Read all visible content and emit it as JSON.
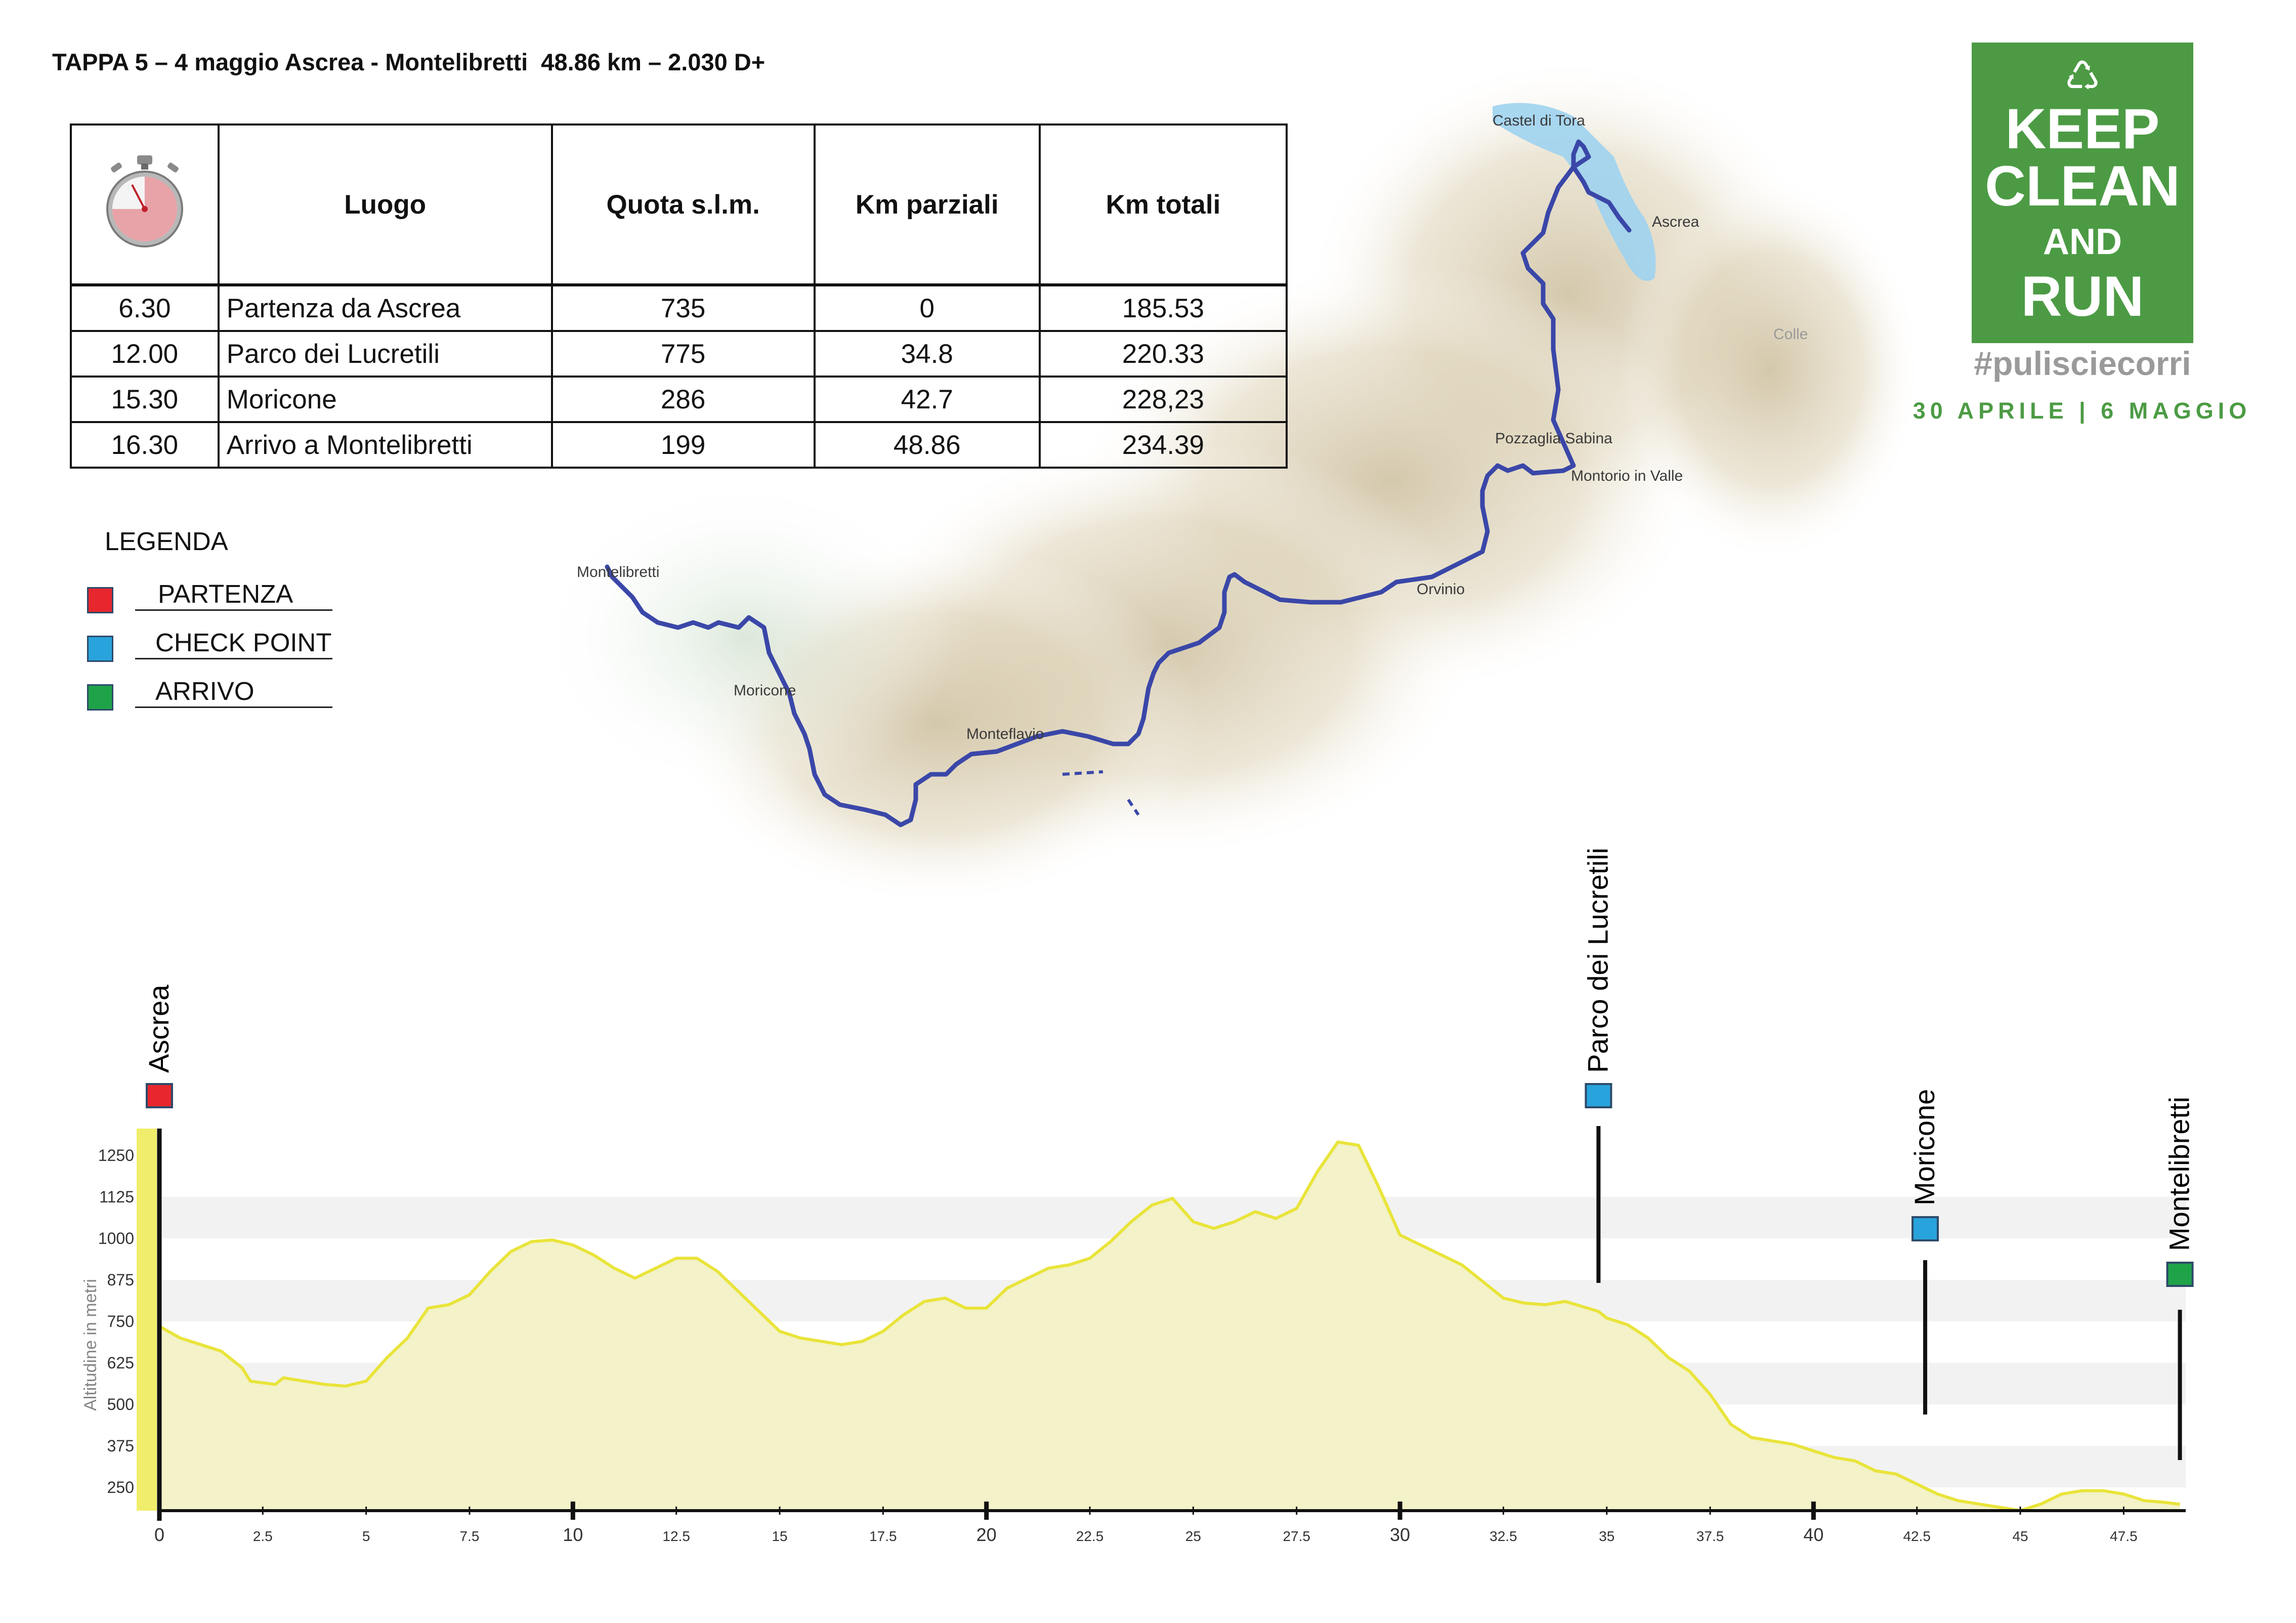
{
  "header": {
    "title": "TAPPA 5 – 4 maggio Ascrea - Montelibretti  48.86 km – 2.030 D+"
  },
  "table": {
    "headers": [
      "Luogo",
      "Quota s.l.m.",
      "Km parziali",
      "Km totali"
    ],
    "stopwatch_icon": "stopwatch-icon",
    "rows": [
      {
        "time": "6.30",
        "place": "Partenza da Ascrea",
        "altitude": "735",
        "partial_km": "0",
        "total_km": "185.53"
      },
      {
        "time": "12.00",
        "place": "Parco dei Lucretili",
        "altitude": "775",
        "partial_km": "34.8",
        "total_km": "220.33"
      },
      {
        "time": "15.30",
        "place": "Moricone",
        "altitude": "286",
        "partial_km": "42.7",
        "total_km": "228,23"
      },
      {
        "time": "16.30",
        "place": "Arrivo a Montelibretti",
        "altitude": "199",
        "partial_km": "48.86",
        "total_km": "234.39"
      }
    ]
  },
  "legend": {
    "title": "LEGENDA",
    "items": [
      {
        "label": "PARTENZA",
        "color": "#e8262d"
      },
      {
        "label": "CHECK POINT",
        "color": "#29a3dc"
      },
      {
        "label": "ARRIVO",
        "color": "#1fa349"
      }
    ]
  },
  "brand": {
    "recycle_icon": "recycle-icon",
    "line1": "KEEP",
    "line2": "CLEAN",
    "line3": "AND",
    "line4": "RUN",
    "hashtag": "#pulisciecorri",
    "dates": "30 APRILE | 6 MAGGIO",
    "color": "#4c9b44"
  },
  "map": {
    "labels": [
      "Castel di Tora",
      "Ascrea",
      "Pozzaglia Sabina",
      "Montorio in Valle",
      "Orvinio",
      "Montelibretti",
      "Moricone",
      "Monteflavio",
      "Colle"
    ],
    "route_color": "#3a47a8"
  },
  "profile_markers": [
    {
      "label": "Ascrea",
      "km": 0,
      "type": "start",
      "color": "#e8262d"
    },
    {
      "label": "Parco dei Lucretili",
      "km": 34.8,
      "type": "checkpoint",
      "color": "#29a3dc"
    },
    {
      "label": "Moricone",
      "km": 42.7,
      "type": "checkpoint",
      "color": "#29a3dc"
    },
    {
      "label": "Montelibretti",
      "km": 48.86,
      "type": "finish",
      "color": "#1fa349"
    }
  ],
  "chart_data": {
    "type": "area",
    "ylabel": "Altitudine in metri",
    "x_ticks": [
      "0",
      "2.5",
      "5",
      "7.5",
      "10",
      "12.5",
      "15",
      "17.5",
      "20",
      "22.5",
      "25",
      "27.5",
      "30",
      "32.5",
      "35",
      "37.5",
      "40",
      "42.5",
      "45",
      "47.5"
    ],
    "y_ticks": [
      "250",
      "375",
      "500",
      "625",
      "750",
      "875",
      "1000",
      "1125",
      "1250"
    ],
    "xlim": [
      0,
      49
    ],
    "ylim": [
      180,
      1300
    ],
    "series": [
      {
        "x": [
          0,
          0.5,
          1,
          1.5,
          2,
          2.2,
          2.8,
          3,
          3.5,
          4,
          4.5,
          5,
          5.5,
          6,
          6.5,
          7,
          7.5,
          8,
          8.5,
          9,
          9.5,
          10,
          10.5,
          11,
          11.5,
          12,
          12.5,
          13,
          13.5,
          14,
          14.5,
          15,
          15.5,
          16,
          16.5,
          17,
          17.5,
          18,
          18.5,
          19,
          19.5,
          20,
          20.5,
          21,
          21.5,
          22,
          22.5,
          23,
          23.5,
          24,
          24.5,
          25,
          25.5,
          26,
          26.5,
          27,
          27.5,
          28,
          28.5,
          29,
          29.5,
          30,
          30.5,
          31,
          31.5,
          32,
          32.5,
          33,
          33.5,
          34,
          34.8,
          35,
          35.5,
          36,
          36.5,
          37,
          37.5,
          38,
          38.5,
          39,
          39.5,
          40,
          40.5,
          41,
          41.5,
          42,
          42.5,
          43,
          43.5,
          44,
          44.5,
          45,
          45.5,
          46,
          46.5,
          47,
          47.5,
          48,
          48.5,
          48.86
        ],
        "y": [
          735,
          700,
          680,
          660,
          610,
          570,
          560,
          580,
          570,
          560,
          555,
          570,
          640,
          700,
          790,
          800,
          830,
          900,
          960,
          990,
          995,
          980,
          950,
          910,
          880,
          910,
          940,
          940,
          900,
          840,
          780,
          720,
          700,
          690,
          680,
          690,
          720,
          770,
          810,
          820,
          790,
          790,
          850,
          880,
          910,
          920,
          940,
          990,
          1050,
          1100,
          1120,
          1050,
          1030,
          1050,
          1080,
          1060,
          1090,
          1200,
          1290,
          1280,
          1150,
          1010,
          980,
          950,
          920,
          870,
          820,
          805,
          800,
          810,
          780,
          760,
          740,
          700,
          640,
          600,
          530,
          440,
          400,
          390,
          380,
          360,
          340,
          330,
          300,
          290,
          260,
          230,
          210,
          200,
          190,
          180,
          200,
          230,
          240,
          240,
          230,
          210,
          205,
          199
        ]
      }
    ]
  }
}
